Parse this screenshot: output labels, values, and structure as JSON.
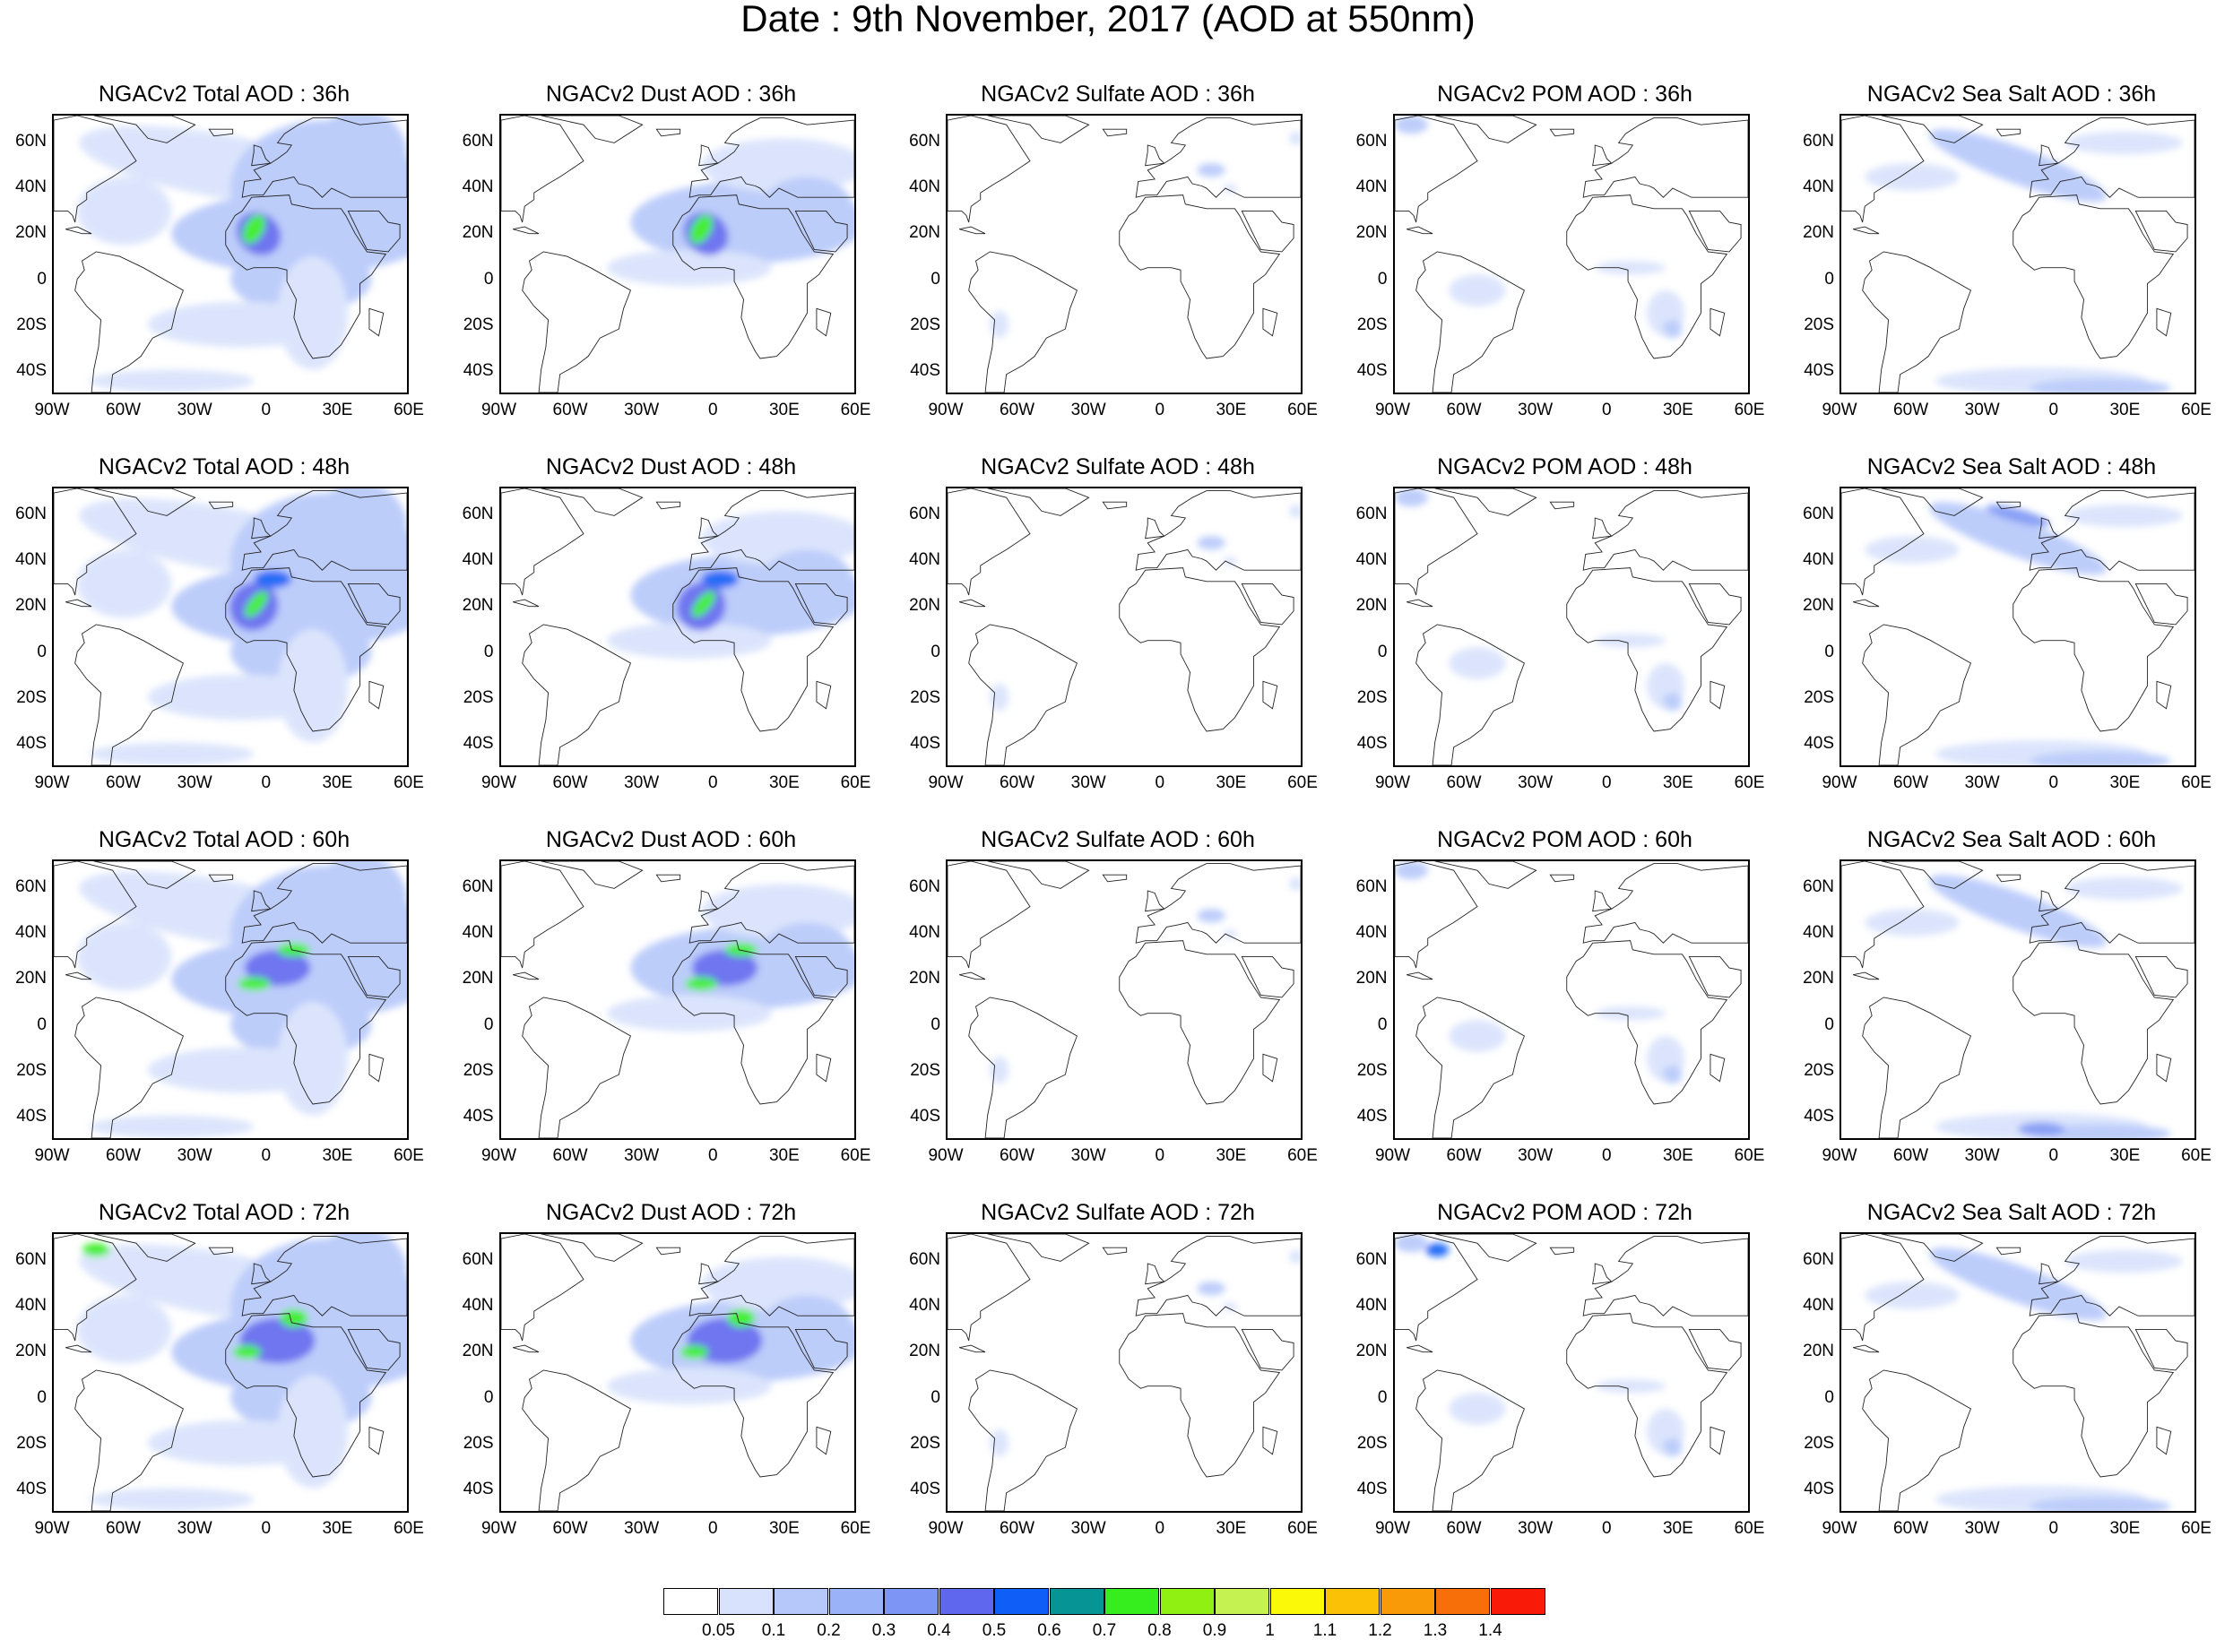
{
  "title": "Date : 9th November, 2017 (AOD at 550nm)",
  "lat_ticks": [
    "60N",
    "40N",
    "20N",
    "0",
    "20S",
    "40S"
  ],
  "lon_ticks": [
    "90W",
    "60W",
    "30W",
    "0",
    "30E",
    "60E"
  ],
  "map_extent": {
    "lon": [
      -90,
      60
    ],
    "lat": [
      -50,
      72
    ]
  },
  "species": [
    "total",
    "dust",
    "sulfate",
    "pom",
    "seasalt"
  ],
  "panels": [
    {
      "title": "NGACv2 Total AOD : 36h",
      "species": "total",
      "forecast_hour": 36
    },
    {
      "title": "NGACv2 Dust AOD : 36h",
      "species": "dust",
      "forecast_hour": 36
    },
    {
      "title": "NGACv2 Sulfate AOD : 36h",
      "species": "sulfate",
      "forecast_hour": 36
    },
    {
      "title": "NGACv2 POM AOD : 36h",
      "species": "pom",
      "forecast_hour": 36
    },
    {
      "title": "NGACv2 Sea Salt AOD : 36h",
      "species": "seasalt",
      "forecast_hour": 36
    },
    {
      "title": "NGACv2 Total AOD : 48h",
      "species": "total",
      "forecast_hour": 48
    },
    {
      "title": "NGACv2 Dust AOD : 48h",
      "species": "dust",
      "forecast_hour": 48
    },
    {
      "title": "NGACv2 Sulfate AOD : 48h",
      "species": "sulfate",
      "forecast_hour": 48
    },
    {
      "title": "NGACv2 POM AOD : 48h",
      "species": "pom",
      "forecast_hour": 48
    },
    {
      "title": "NGACv2 Sea Salt AOD : 48h",
      "species": "seasalt",
      "forecast_hour": 48
    },
    {
      "title": "NGACv2 Total AOD : 60h",
      "species": "total",
      "forecast_hour": 60
    },
    {
      "title": "NGACv2 Dust AOD : 60h",
      "species": "dust",
      "forecast_hour": 60
    },
    {
      "title": "NGACv2 Sulfate AOD : 60h",
      "species": "sulfate",
      "forecast_hour": 60
    },
    {
      "title": "NGACv2 POM AOD : 60h",
      "species": "pom",
      "forecast_hour": 60
    },
    {
      "title": "NGACv2 Sea Salt AOD : 60h",
      "species": "seasalt",
      "forecast_hour": 60
    },
    {
      "title": "NGACv2 Total AOD : 72h",
      "species": "total",
      "forecast_hour": 72
    },
    {
      "title": "NGACv2 Dust AOD : 72h",
      "species": "dust",
      "forecast_hour": 72
    },
    {
      "title": "NGACv2 Sulfate AOD : 72h",
      "species": "sulfate",
      "forecast_hour": 72
    },
    {
      "title": "NGACv2 POM AOD : 72h",
      "species": "pom",
      "forecast_hour": 72
    },
    {
      "title": "NGACv2 Sea Salt  AOD : 72h",
      "species": "seasalt",
      "forecast_hour": 72
    }
  ],
  "colorbar": {
    "labels": [
      "0.05",
      "0.1",
      "0.2",
      "0.3",
      "0.4",
      "0.5",
      "0.6",
      "0.7",
      "0.8",
      "0.9",
      "1",
      "1.1",
      "1.2",
      "1.3",
      "1.4"
    ],
    "colors": [
      "#ffffff",
      "#d8e2fc",
      "#b6c8fa",
      "#9ab2f8",
      "#7d96f5",
      "#6067ef",
      "#0f5ef7",
      "#069494",
      "#36ed1d",
      "#90f012",
      "#c5f250",
      "#fbf907",
      "#fbc107",
      "#f99a08",
      "#f76f08",
      "#fa1a08"
    ]
  }
}
